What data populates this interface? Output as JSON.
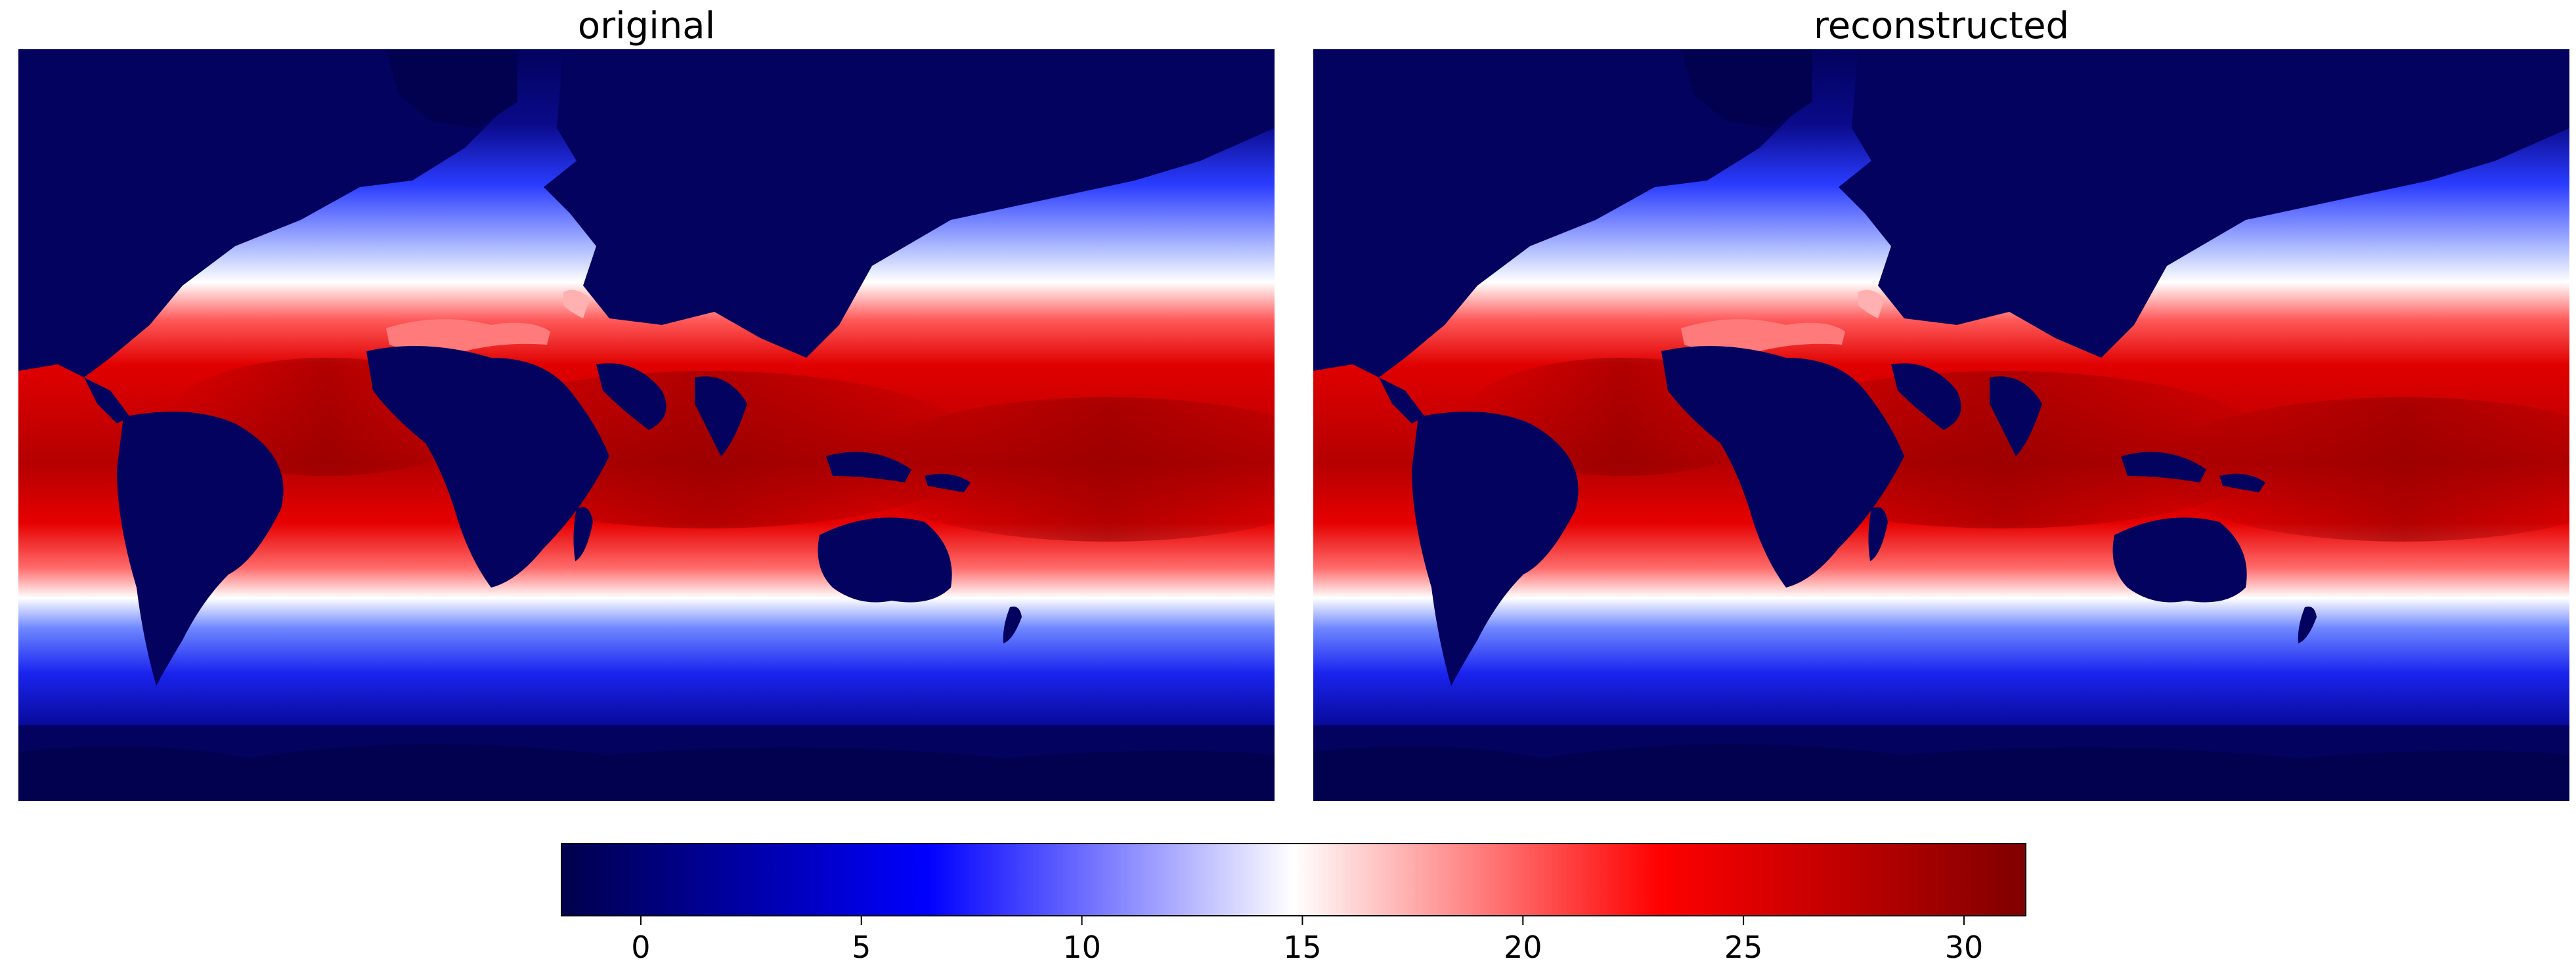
{
  "chart_data": [
    {
      "type": "heatmap",
      "title": "original",
      "xlabel": "",
      "ylabel": ""
    },
    {
      "type": "heatmap",
      "title": "reconstructed",
      "xlabel": "",
      "ylabel": ""
    }
  ],
  "colorbar": {
    "cmap": "seismic",
    "range": [
      -1.8,
      31.4
    ],
    "ticks": [
      0,
      5,
      10,
      15,
      20,
      25,
      30
    ],
    "colors": [
      "#00004c",
      "#0000ff",
      "#ffffff",
      "#ff0000",
      "#800000"
    ]
  }
}
